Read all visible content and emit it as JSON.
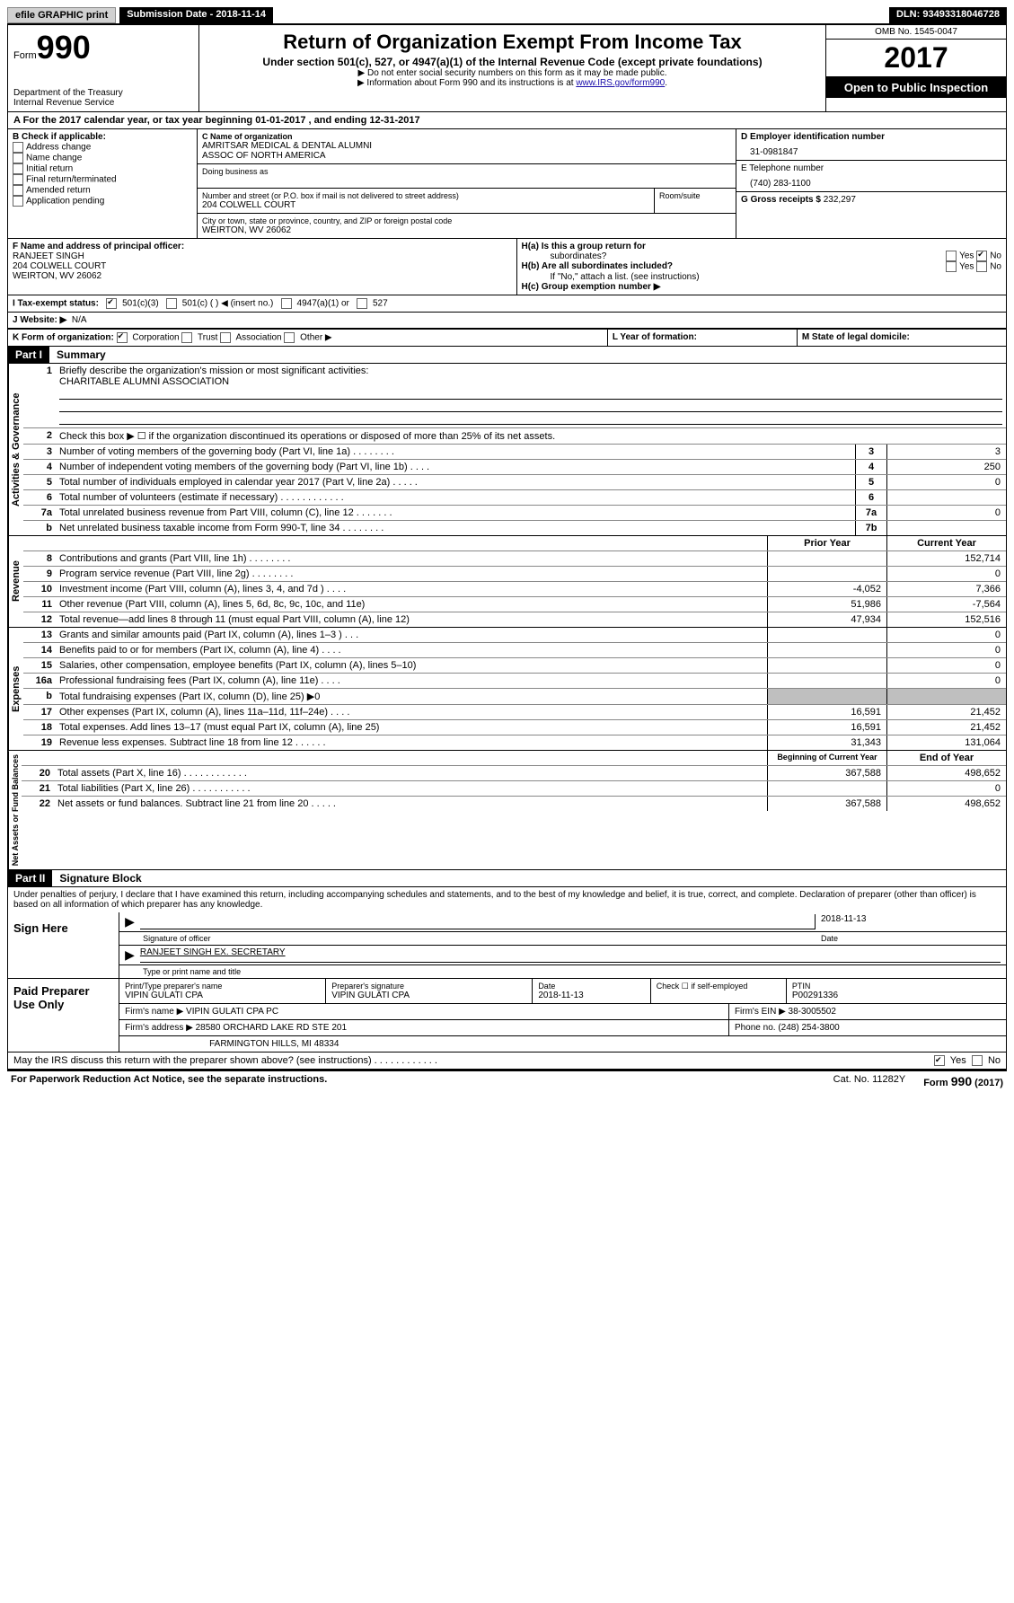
{
  "top": {
    "efile": "efile GRAPHIC print",
    "submission": "Submission Date - 2018-11-14",
    "dln": "DLN: 93493318046728"
  },
  "header": {
    "form_word": "Form",
    "form_number": "990",
    "dept1": "Department of the Treasury",
    "dept2": "Internal Revenue Service",
    "title": "Return of Organization Exempt From Income Tax",
    "subtitle": "Under section 501(c), 527, or 4947(a)(1) of the Internal Revenue Code (except private foundations)",
    "note1": "▶ Do not enter social security numbers on this form as it may be made public.",
    "note2_prefix": "▶ Information about Form 990 and its instructions is at ",
    "note2_link": "www.IRS.gov/form990",
    "omb": "OMB No. 1545-0047",
    "year": "2017",
    "inspection": "Open to Public Inspection"
  },
  "section_a": "A   For the 2017 calendar year, or tax year beginning 01-01-2017   , and ending 12-31-2017",
  "section_b": {
    "label": "B Check if applicable:",
    "items": [
      "Address change",
      "Name change",
      "Initial return",
      "Final return/terminated",
      "Amended return",
      "Application pending"
    ]
  },
  "section_c": {
    "name_label": "C Name of organization",
    "name1": "AMRITSAR MEDICAL & DENTAL ALUMNI",
    "name2": "ASSOC OF NORTH AMERICA",
    "dba_label": "Doing business as",
    "street_label": "Number and street (or P.O. box if mail is not delivered to street address)",
    "room_label": "Room/suite",
    "street": "204 COLWELL COURT",
    "city_label": "City or town, state or province, country, and ZIP or foreign postal code",
    "city": "WEIRTON, WV  26062"
  },
  "section_d": {
    "ein_label": "D Employer identification number",
    "ein": "31-0981847",
    "phone_label": "E Telephone number",
    "phone": "(740) 283-1100",
    "gross_label": "G Gross receipts $",
    "gross": "232,297"
  },
  "section_f": {
    "label": "F  Name and address of principal officer:",
    "name": "RANJEET SINGH",
    "addr1": "204 COLWELL COURT",
    "addr2": "WEIRTON, WV  26062"
  },
  "section_h": {
    "ha": "H(a)  Is this a group return for",
    "ha2": "subordinates?",
    "hb": "H(b)  Are all subordinates included?",
    "hb_note": "If \"No,\" attach a list. (see instructions)",
    "hc": "H(c)  Group exemption number ▶",
    "yes": "Yes",
    "no": "No"
  },
  "section_i": {
    "label": "I   Tax-exempt status:",
    "o1": "501(c)(3)",
    "o2": "501(c) (  ) ◀ (insert no.)",
    "o3": "4947(a)(1) or",
    "o4": "527"
  },
  "section_j": {
    "label": "J   Website: ▶",
    "val": "N/A"
  },
  "section_k": {
    "label": "K Form of organization:",
    "o1": "Corporation",
    "o2": "Trust",
    "o3": "Association",
    "o4": "Other ▶"
  },
  "section_l": "L Year of formation:",
  "section_m": "M State of legal domicile:",
  "part1": {
    "num": "Part I",
    "title": "Summary"
  },
  "gov": {
    "label": "Activities & Governance",
    "l1": "Briefly describe the organization's mission or most significant activities:",
    "l1v": "CHARITABLE ALUMNI ASSOCIATION",
    "l2": "Check this box ▶ ☐  if the organization discontinued its operations or disposed of more than 25% of its net assets.",
    "rows": [
      {
        "n": "3",
        "d": "Number of voting members of the governing body (Part VI, line 1a)   .   .   .   .   .   .   .   .",
        "b": "3",
        "v": "3"
      },
      {
        "n": "4",
        "d": "Number of independent voting members of the governing body (Part VI, line 1b)   .   .   .   .",
        "b": "4",
        "v": "250"
      },
      {
        "n": "5",
        "d": "Total number of individuals employed in calendar year 2017 (Part V, line 2a)   .   .   .   .   .",
        "b": "5",
        "v": "0"
      },
      {
        "n": "6",
        "d": "Total number of volunteers (estimate if necessary)   .   .   .   .   .   .   .   .   .   .   .   .",
        "b": "6",
        "v": ""
      },
      {
        "n": "7a",
        "d": "Total unrelated business revenue from Part VIII, column (C), line 12   .   .   .   .   .   .   .",
        "b": "7a",
        "v": "0"
      },
      {
        "n": "b",
        "d": "Net unrelated business taxable income from Form 990-T, line 34   .   .   .   .   .   .   .   .",
        "b": "7b",
        "v": ""
      }
    ]
  },
  "rev": {
    "label": "Revenue",
    "hdr_prior": "Prior Year",
    "hdr_curr": "Current Year",
    "rows": [
      {
        "n": "8",
        "d": "Contributions and grants (Part VIII, line 1h)   .   .   .   .   .   .   .   .",
        "p": "",
        "c": "152,714"
      },
      {
        "n": "9",
        "d": "Program service revenue (Part VIII, line 2g)   .   .   .   .   .   .   .   .",
        "p": "",
        "c": "0"
      },
      {
        "n": "10",
        "d": "Investment income (Part VIII, column (A), lines 3, 4, and 7d )   .   .   .   .",
        "p": "-4,052",
        "c": "7,366"
      },
      {
        "n": "11",
        "d": "Other revenue (Part VIII, column (A), lines 5, 6d, 8c, 9c, 10c, and 11e)",
        "p": "51,986",
        "c": "-7,564"
      },
      {
        "n": "12",
        "d": "Total revenue—add lines 8 through 11 (must equal Part VIII, column (A), line 12)",
        "p": "47,934",
        "c": "152,516"
      }
    ]
  },
  "exp": {
    "label": "Expenses",
    "rows": [
      {
        "n": "13",
        "d": "Grants and similar amounts paid (Part IX, column (A), lines 1–3 )   .   .   .",
        "p": "",
        "c": "0"
      },
      {
        "n": "14",
        "d": "Benefits paid to or for members (Part IX, column (A), line 4)   .   .   .   .",
        "p": "",
        "c": "0"
      },
      {
        "n": "15",
        "d": "Salaries, other compensation, employee benefits (Part IX, column (A), lines 5–10)",
        "p": "",
        "c": "0"
      },
      {
        "n": "16a",
        "d": "Professional fundraising fees (Part IX, column (A), line 11e)   .   .   .   .",
        "p": "",
        "c": "0"
      },
      {
        "n": "b",
        "d": "Total fundraising expenses (Part IX, column (D), line 25) ▶0",
        "p": "shade",
        "c": "shade"
      },
      {
        "n": "17",
        "d": "Other expenses (Part IX, column (A), lines 11a–11d, 11f–24e)   .   .   .   .",
        "p": "16,591",
        "c": "21,452"
      },
      {
        "n": "18",
        "d": "Total expenses. Add lines 13–17 (must equal Part IX, column (A), line 25)",
        "p": "16,591",
        "c": "21,452"
      },
      {
        "n": "19",
        "d": "Revenue less expenses. Subtract line 18 from line 12   .   .   .   .   .   .",
        "p": "31,343",
        "c": "131,064"
      }
    ]
  },
  "net": {
    "label": "Net Assets or Fund Balances",
    "hdr_beg": "Beginning of Current Year",
    "hdr_end": "End of Year",
    "rows": [
      {
        "n": "20",
        "d": "Total assets (Part X, line 16)   .   .   .   .   .   .   .   .   .   .   .   .",
        "p": "367,588",
        "c": "498,652"
      },
      {
        "n": "21",
        "d": "Total liabilities (Part X, line 26)   .   .   .   .   .   .   .   .   .   .   .",
        "p": "",
        "c": "0"
      },
      {
        "n": "22",
        "d": "Net assets or fund balances. Subtract line 21 from line 20 .   .   .   .   .",
        "p": "367,588",
        "c": "498,652"
      }
    ]
  },
  "part2": {
    "num": "Part II",
    "title": "Signature Block"
  },
  "sig": {
    "perjury": "Under penalties of perjury, I declare that I have examined this return, including accompanying schedules and statements, and to the best of my knowledge and belief, it is true, correct, and complete. Declaration of preparer (other than officer) is based on all information of which preparer has any knowledge.",
    "sign_here": "Sign Here",
    "sig_officer": "Signature of officer",
    "date": "2018-11-13",
    "date_label": "Date",
    "name": "RANJEET SINGH EX. SECRETARY",
    "name_label": "Type or print name and title"
  },
  "prep": {
    "label": "Paid Preparer Use Only",
    "r1": {
      "c1l": "Print/Type preparer's name",
      "c1": "VIPIN GULATI CPA",
      "c2l": "Preparer's signature",
      "c2": "VIPIN GULATI CPA",
      "c3l": "Date",
      "c3": "2018-11-13",
      "c4l": "Check ☐ if self-employed",
      "c5l": "PTIN",
      "c5": "P00291336"
    },
    "r2": {
      "l": "Firm's name      ▶",
      "v": "VIPIN GULATI CPA PC",
      "einl": "Firm's EIN ▶",
      "ein": "38-3005502"
    },
    "r3": {
      "l": "Firm's address ▶",
      "v1": "28580 ORCHARD LAKE RD STE 201",
      "v2": "FARMINGTON HILLS, MI  48334",
      "phl": "Phone no.",
      "ph": "(248) 254-3800"
    }
  },
  "may_irs": {
    "q": "May the IRS discuss this return with the preparer shown above? (see instructions)   .   .   .   .   .   .   .   .   .   .   .   .",
    "yes": "Yes",
    "no": "No"
  },
  "footer": {
    "left": "For Paperwork Reduction Act Notice, see the separate instructions.",
    "center": "Cat. No. 11282Y",
    "right": "Form 990 (2017)"
  }
}
